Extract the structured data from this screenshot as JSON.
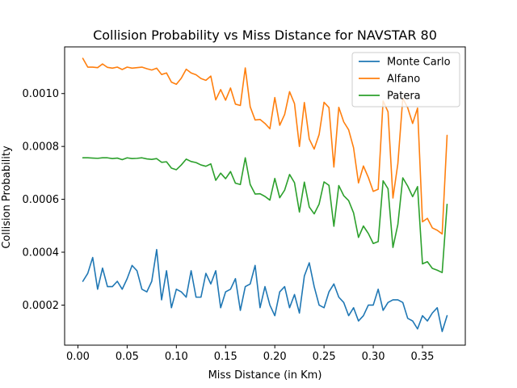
{
  "chart_data": {
    "type": "line",
    "title": "Collision Probability vs Miss Distance for NAVSTAR 80",
    "xlabel": "Miss Distance (in Km)",
    "ylabel": "Collision Probability",
    "xlim": [
      -0.0135,
      0.3935
    ],
    "ylim": [
      4.85e-05,
      0.0011765
    ],
    "xticks": [
      0.0,
      0.05,
      0.1,
      0.15,
      0.2,
      0.25,
      0.3,
      0.35
    ],
    "xtick_labels": [
      "0.00",
      "0.05",
      "0.10",
      "0.15",
      "0.20",
      "0.25",
      "0.30",
      "0.35"
    ],
    "yticks": [
      0.0002,
      0.0004,
      0.0006,
      0.0008,
      0.001
    ],
    "ytick_labels": [
      "0.0002",
      "0.0004",
      "0.0006",
      "0.0008",
      "0.0010"
    ],
    "grid": false,
    "legend": "top-right",
    "x": [
      0.005,
      0.01,
      0.015,
      0.02,
      0.025,
      0.03,
      0.035,
      0.04,
      0.045,
      0.05,
      0.055,
      0.06,
      0.065,
      0.07,
      0.075,
      0.08,
      0.085,
      0.09,
      0.095,
      0.1,
      0.105,
      0.11,
      0.115,
      0.12,
      0.125,
      0.13,
      0.135,
      0.14,
      0.145,
      0.15,
      0.155,
      0.16,
      0.165,
      0.17,
      0.175,
      0.18,
      0.185,
      0.19,
      0.195,
      0.2,
      0.205,
      0.21,
      0.215,
      0.22,
      0.225,
      0.23,
      0.235,
      0.24,
      0.245,
      0.25,
      0.255,
      0.26,
      0.265,
      0.27,
      0.275,
      0.28,
      0.285,
      0.29,
      0.295,
      0.3,
      0.305,
      0.31,
      0.315,
      0.32,
      0.325,
      0.33,
      0.335,
      0.34,
      0.345,
      0.35,
      0.355,
      0.36,
      0.365,
      0.37,
      0.375
    ],
    "series": [
      {
        "name": "Monte Carlo",
        "color": "#1f77b4",
        "values": [
          0.00029,
          0.00032,
          0.00038,
          0.00026,
          0.00034,
          0.00027,
          0.00027,
          0.00029,
          0.00026,
          0.0003,
          0.00035,
          0.00033,
          0.00026,
          0.00025,
          0.00029,
          0.00041,
          0.00022,
          0.00033,
          0.00019,
          0.00026,
          0.00025,
          0.00023,
          0.00033,
          0.00023,
          0.00023,
          0.00032,
          0.00028,
          0.00033,
          0.00019,
          0.00025,
          0.00026,
          0.0003,
          0.00018,
          0.00027,
          0.00028,
          0.00035,
          0.00019,
          0.00027,
          0.0002,
          0.00016,
          0.00025,
          0.00027,
          0.00019,
          0.00024,
          0.00017,
          0.00031,
          0.00036,
          0.00027,
          0.0002,
          0.00019,
          0.00025,
          0.00028,
          0.00023,
          0.00021,
          0.00016,
          0.00019,
          0.00014,
          0.00016,
          0.0002,
          0.0002,
          0.00026,
          0.00018,
          0.00021,
          0.00022,
          0.00022,
          0.00021,
          0.00015,
          0.00014,
          0.00011,
          0.00016,
          0.00014,
          0.00017,
          0.00019,
          0.0001,
          0.00016
        ]
      },
      {
        "name": "Alfano",
        "color": "#ff7f0e",
        "values": [
          0.001133,
          0.0011,
          0.0011,
          0.001098,
          0.001112,
          0.001099,
          0.001096,
          0.0011,
          0.001091,
          0.0011,
          0.001096,
          0.001098,
          0.0011,
          0.001094,
          0.001089,
          0.001096,
          0.001072,
          0.001078,
          0.001043,
          0.001035,
          0.001058,
          0.001092,
          0.001078,
          0.001071,
          0.001057,
          0.00105,
          0.001066,
          0.000976,
          0.001015,
          0.000975,
          0.001021,
          0.00096,
          0.000955,
          0.001097,
          0.00095,
          0.0009,
          0.000902,
          0.000887,
          0.000867,
          0.000985,
          0.00088,
          0.000921,
          0.001007,
          0.000962,
          0.0008,
          0.000966,
          0.000828,
          0.00079,
          0.000845,
          0.000967,
          0.000947,
          0.000722,
          0.000948,
          0.000893,
          0.000863,
          0.000795,
          0.000662,
          0.000726,
          0.000683,
          0.00063,
          0.000638,
          0.000972,
          0.000931,
          0.000605,
          0.000735,
          0.000982,
          0.000946,
          0.000887,
          0.000945,
          0.000515,
          0.000528,
          0.000492,
          0.000483,
          0.000469,
          0.000842
        ]
      },
      {
        "name": "Patera",
        "color": "#2ca02c",
        "values": [
          0.000757,
          0.000757,
          0.000756,
          0.000755,
          0.000757,
          0.000757,
          0.000754,
          0.000756,
          0.00075,
          0.000757,
          0.000754,
          0.000755,
          0.000757,
          0.000753,
          0.000751,
          0.000754,
          0.00074,
          0.000742,
          0.000718,
          0.000712,
          0.00073,
          0.000752,
          0.000743,
          0.000739,
          0.00073,
          0.000725,
          0.000734,
          0.000672,
          0.000699,
          0.000678,
          0.000705,
          0.000661,
          0.000656,
          0.000757,
          0.000656,
          0.00062,
          0.000621,
          0.000611,
          0.000597,
          0.000679,
          0.000606,
          0.000635,
          0.000694,
          0.000663,
          0.000552,
          0.000665,
          0.000571,
          0.000545,
          0.000582,
          0.000666,
          0.000653,
          0.000498,
          0.000652,
          0.000614,
          0.000595,
          0.000549,
          0.000456,
          0.000499,
          0.000471,
          0.000433,
          0.00044,
          0.00067,
          0.00064,
          0.000418,
          0.000505,
          0.000681,
          0.00065,
          0.00061,
          0.000648,
          0.000356,
          0.000364,
          0.000339,
          0.000332,
          0.000323,
          0.000581
        ]
      }
    ]
  }
}
